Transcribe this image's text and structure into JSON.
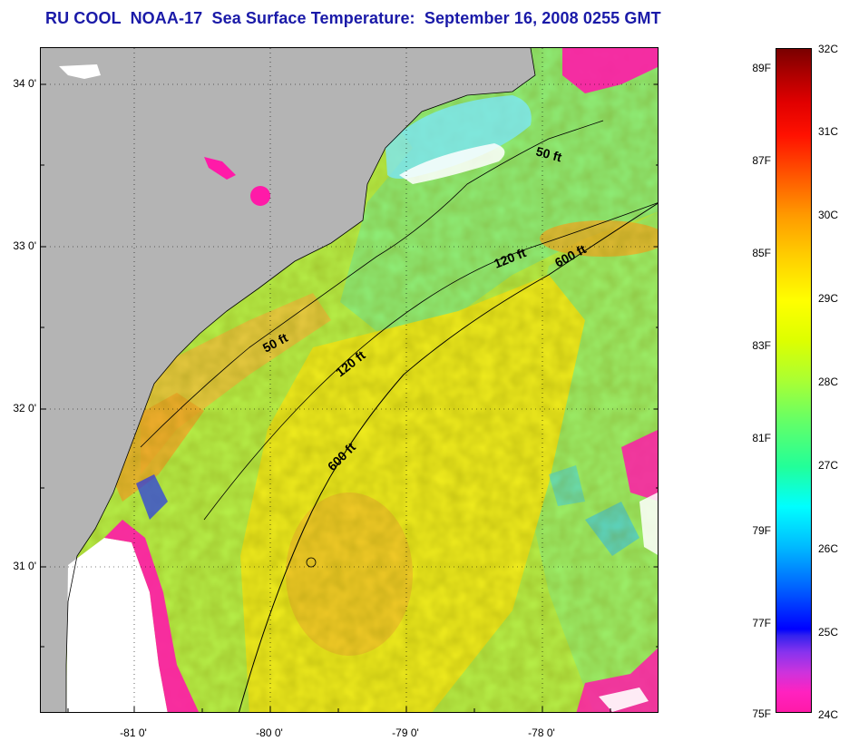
{
  "title": "RU COOL  NOAA-17  Sea Surface Temperature:  September 16, 2008 0255 GMT",
  "map": {
    "lat_labels": [
      "34 0'",
      "33 0'",
      "32 0'",
      "31 0'"
    ],
    "lon_labels": [
      "-81 0'",
      "-80 0'",
      "-79 0'",
      "-78 0'"
    ],
    "contour_labels": [
      "50 ft",
      "50 ft",
      "120 ft",
      "120 ft",
      "600 ft",
      "600 ft"
    ],
    "colors": {
      "land": "#b4b4b4",
      "cloud_white": "#ffffff",
      "cloud_edge": "#ff1aa8",
      "ocean_green": "#9cf56a",
      "ocean_yellow": "#f2ee1e",
      "ocean_orange": "#f5b82a"
    }
  },
  "colorbar": {
    "fahrenheit": [
      "89F",
      "87F",
      "85F",
      "83F",
      "81F",
      "79F",
      "77F",
      "75F"
    ],
    "celsius": [
      "32C",
      "31C",
      "30C",
      "29C",
      "28C",
      "27C",
      "26C",
      "25C",
      "24C"
    ]
  }
}
